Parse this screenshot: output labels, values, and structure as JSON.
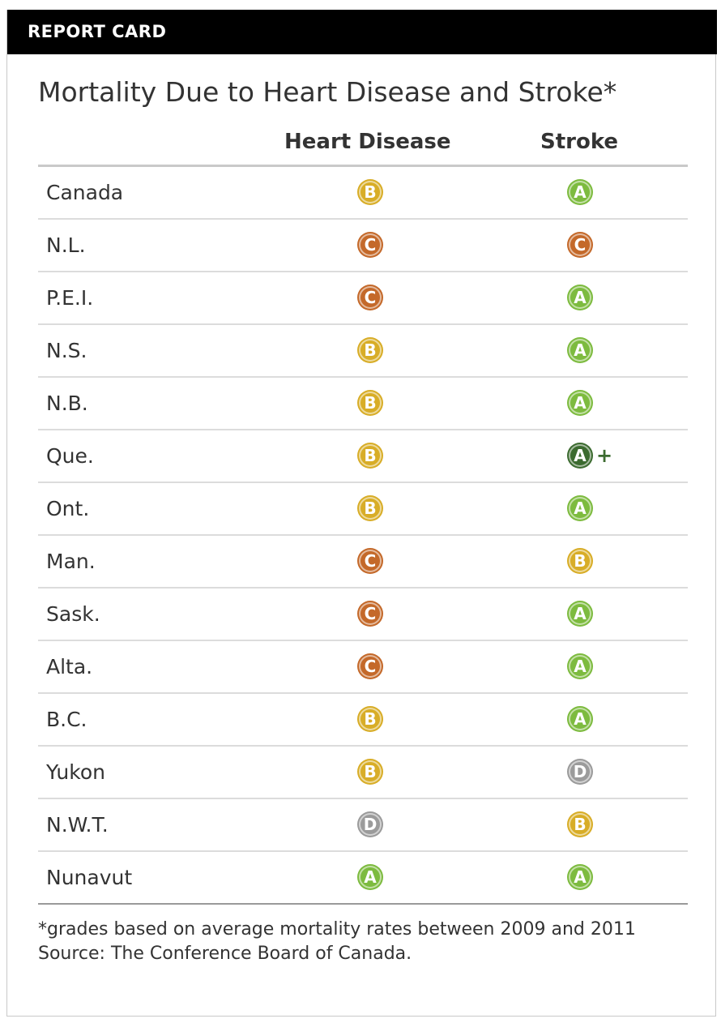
{
  "header": {
    "label": "REPORT CARD"
  },
  "title": "Mortality Due to Heart Disease and Stroke*",
  "columns": {
    "heart": "Heart Disease",
    "stroke": "Stroke"
  },
  "grade_colors": {
    "A+": "#3c6b30",
    "A": "#7dbb3f",
    "B": "#d8ad27",
    "C": "#c4692a",
    "D": "#9b9b9b"
  },
  "chart_data": {
    "type": "table",
    "title": "Mortality Due to Heart Disease and Stroke*",
    "columns": [
      "Heart Disease",
      "Stroke"
    ],
    "rows": [
      {
        "region": "Canada",
        "heart": "B",
        "stroke": "A"
      },
      {
        "region": "N.L.",
        "heart": "C",
        "stroke": "C"
      },
      {
        "region": "P.E.I.",
        "heart": "C",
        "stroke": "A"
      },
      {
        "region": "N.S.",
        "heart": "B",
        "stroke": "A"
      },
      {
        "region": "N.B.",
        "heart": "B",
        "stroke": "A"
      },
      {
        "region": "Que.",
        "heart": "B",
        "stroke": "A+"
      },
      {
        "region": "Ont.",
        "heart": "B",
        "stroke": "A"
      },
      {
        "region": "Man.",
        "heart": "C",
        "stroke": "B"
      },
      {
        "region": "Sask.",
        "heart": "C",
        "stroke": "A"
      },
      {
        "region": "Alta.",
        "heart": "C",
        "stroke": "A"
      },
      {
        "region": "B.C.",
        "heart": "B",
        "stroke": "A"
      },
      {
        "region": "Yukon",
        "heart": "B",
        "stroke": "D"
      },
      {
        "region": "N.W.T.",
        "heart": "D",
        "stroke": "B"
      },
      {
        "region": "Nunavut",
        "heart": "A",
        "stroke": "A"
      }
    ]
  },
  "footnote": {
    "line1": "*grades based on average mortality rates between 2009 and 2011",
    "source": "Source: The Conference Board of Canada."
  }
}
